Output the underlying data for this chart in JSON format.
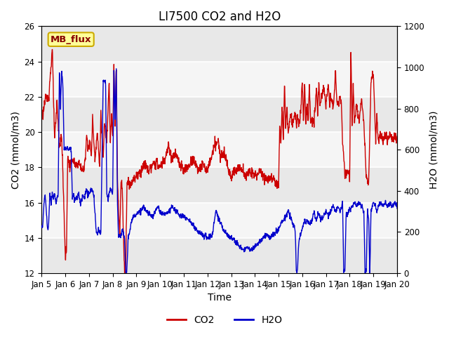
{
  "title": "LI7500 CO2 and H2O",
  "xlabel": "Time",
  "ylabel_left": "CO2 (mmol/m3)",
  "ylabel_right": "H2O (mmol/m3)",
  "ylim_left": [
    12,
    26
  ],
  "ylim_right": [
    0,
    1200
  ],
  "yticks_left": [
    12,
    14,
    16,
    18,
    20,
    22,
    24,
    26
  ],
  "yticks_right": [
    0,
    200,
    400,
    600,
    800,
    1000,
    1200
  ],
  "xticklabels": [
    "Jan 5",
    "Jan 6",
    "Jan 7",
    "Jan 8",
    "Jan 9",
    "Jan 10",
    "Jan 11",
    "Jan 12",
    "Jan 13",
    "Jan 14",
    "Jan 15",
    "Jan 16",
    "Jan 17",
    "Jan 18",
    "Jan 19",
    "Jan 20"
  ],
  "co2_color": "#cc0000",
  "h2o_color": "#0000cc",
  "line_width": 1.0,
  "background_color": "#ffffff",
  "plot_bg_color": "#e8e8e8",
  "plot_bg_light": "#f5f5f5",
  "grid_color": "#ffffff",
  "watermark_text": "MB_flux",
  "watermark_bg": "#ffff99",
  "watermark_border": "#ccaa00",
  "watermark_text_color": "#880000",
  "legend_co2": "CO2",
  "legend_h2o": "H2O",
  "title_fontsize": 12,
  "axis_label_fontsize": 10,
  "tick_fontsize": 8.5
}
